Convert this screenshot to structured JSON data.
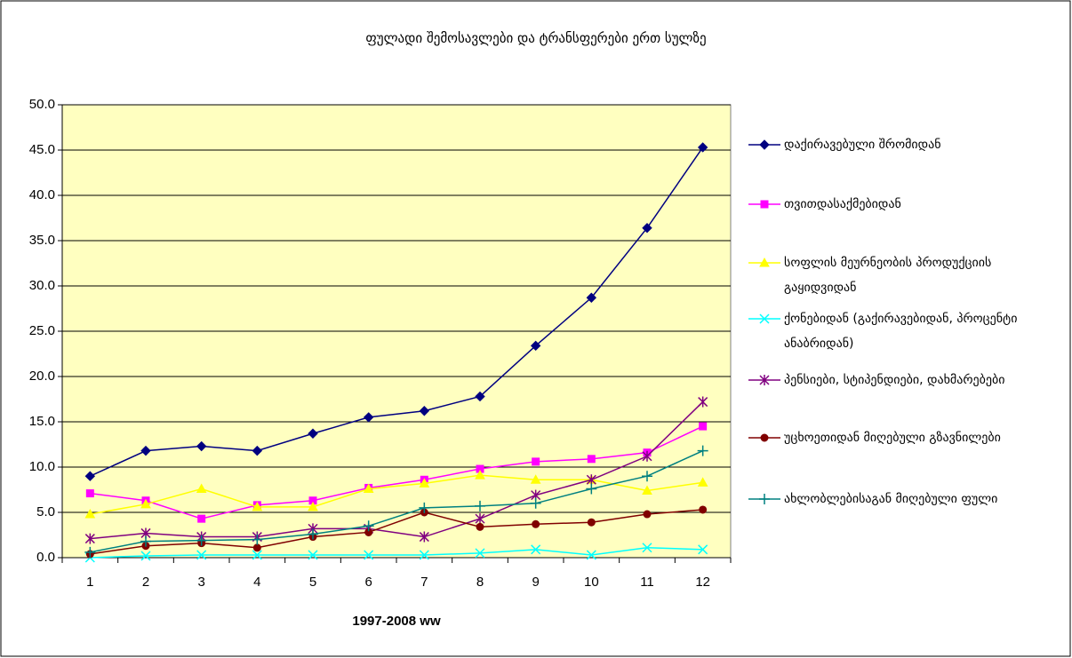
{
  "chart_data": {
    "type": "line",
    "title": "ფულადი შემოსავლები და ტრანსფერები ერთ სულზე",
    "x_label": "1997-2008 ww",
    "categories": [
      "1",
      "2",
      "3",
      "4",
      "5",
      "6",
      "7",
      "8",
      "9",
      "10",
      "11",
      "12"
    ],
    "ylim": [
      0,
      50
    ],
    "yticks": [
      {
        "value": 0,
        "label": "0.0"
      },
      {
        "value": 5,
        "label": "5.0"
      },
      {
        "value": 10,
        "label": "10.0"
      },
      {
        "value": 15,
        "label": "15.0"
      },
      {
        "value": 20,
        "label": "20.0"
      },
      {
        "value": 25,
        "label": "25.0"
      },
      {
        "value": 30,
        "label": "30.0"
      },
      {
        "value": 35,
        "label": "35.0"
      },
      {
        "value": 40,
        "label": "40.0"
      },
      {
        "value": 45,
        "label": "45.0"
      },
      {
        "value": 50,
        "label": "50.0"
      }
    ],
    "grid": true,
    "legend": "right",
    "series": [
      {
        "name": "დაქირავებული შრომიდან",
        "color": "#000080",
        "marker": "diamond",
        "values": [
          9.0,
          11.8,
          12.3,
          11.8,
          13.7,
          15.5,
          16.2,
          17.8,
          23.4,
          28.7,
          36.4,
          45.3
        ]
      },
      {
        "name": "თვითდასაქმებიდან",
        "color": "#ff00ff",
        "marker": "square",
        "values": [
          7.1,
          6.3,
          4.3,
          5.8,
          6.3,
          7.7,
          8.6,
          9.8,
          10.6,
          10.9,
          11.6,
          14.5
        ]
      },
      {
        "name": "სოფლის  მეურნეობის პროდუქციის გაყიდვიდან",
        "color": "#ffff00",
        "marker": "triangle",
        "values": [
          4.8,
          5.9,
          7.6,
          5.6,
          5.6,
          7.6,
          8.2,
          9.1,
          8.6,
          8.6,
          7.4,
          8.3
        ]
      },
      {
        "name": "ქონებიდან (გაქირავებიდან, პროცენტი ანაბრიდან)",
        "color": "#00ffff",
        "marker": "x",
        "values": [
          0.0,
          0.2,
          0.3,
          0.3,
          0.3,
          0.3,
          0.3,
          0.5,
          0.9,
          0.3,
          1.1,
          0.9
        ]
      },
      {
        "name": "პენსიები, სტიპენდიები, დახმარებები",
        "color": "#800080",
        "marker": "star",
        "values": [
          2.1,
          2.7,
          2.3,
          2.3,
          3.2,
          3.2,
          2.3,
          4.3,
          6.9,
          8.6,
          11.2,
          17.2
        ]
      },
      {
        "name": "უცხოეთიდან მიღებული გზავნილები",
        "color": "#800000",
        "marker": "circle",
        "values": [
          0.4,
          1.3,
          1.6,
          1.1,
          2.3,
          2.8,
          5.0,
          3.4,
          3.7,
          3.9,
          4.8,
          5.3
        ]
      },
      {
        "name": "ახლობლებისაგან მიღებული ფული",
        "color": "#008080",
        "marker": "plus",
        "values": [
          0.6,
          1.8,
          1.9,
          2.0,
          2.6,
          3.5,
          5.5,
          5.7,
          6.0,
          7.6,
          9.0,
          11.8
        ]
      }
    ]
  }
}
